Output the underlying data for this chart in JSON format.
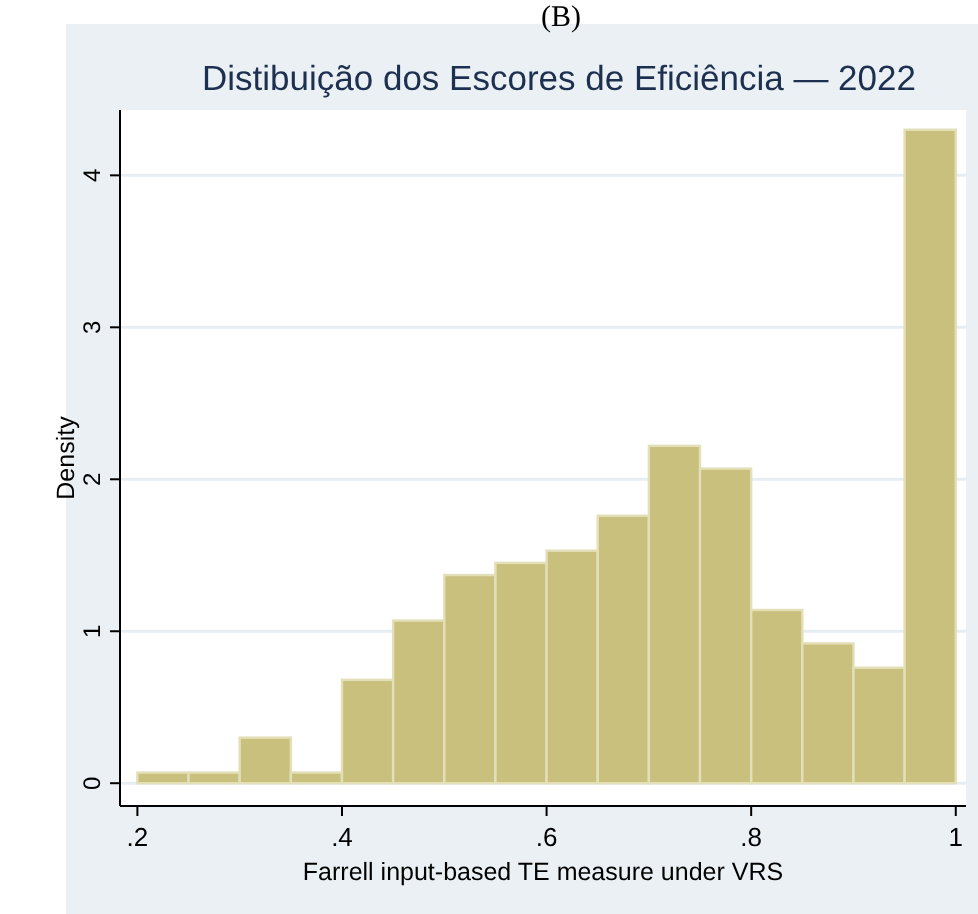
{
  "chart_data": {
    "type": "histogram",
    "title": "Distibuição dos Escores de Eficiência — 2022",
    "xlabel": "Farrell input-based TE measure under VRS",
    "ylabel": "Density",
    "annotations": [
      "(B)"
    ],
    "bins": [
      0.2,
      0.25,
      0.3,
      0.35,
      0.4,
      0.45,
      0.5,
      0.55,
      0.6,
      0.65,
      0.7,
      0.75,
      0.8,
      0.85,
      0.9,
      0.95,
      1.0
    ],
    "values": [
      0.07,
      0.07,
      0.3,
      0.07,
      0.68,
      1.07,
      1.37,
      1.45,
      1.53,
      1.76,
      2.22,
      2.07,
      1.14,
      0.92,
      0.76,
      4.3
    ],
    "color": "#c9c07e",
    "xlim": [
      0.183,
      1.01
    ],
    "xticks": [
      {
        "value": 0.2,
        "label": ".2"
      },
      {
        "value": 0.4,
        "label": ".4"
      },
      {
        "value": 0.6,
        "label": ".6"
      },
      {
        "value": 0.8,
        "label": ".8"
      },
      1
    ],
    "ylim": [
      -0.15,
      4.43
    ],
    "yticks": [
      0,
      1,
      2,
      3,
      4
    ],
    "grid": "y"
  }
}
